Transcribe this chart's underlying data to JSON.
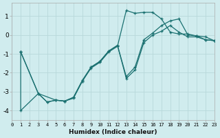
{
  "xlabel": "Humidex (Indice chaleur)",
  "ylabel": "",
  "bg_color": "#d0ecee",
  "grid_color": "#b8d8da",
  "line_color": "#1a7070",
  "xlim": [
    0,
    23
  ],
  "ylim": [
    -4.5,
    1.7
  ],
  "yticks": [
    -4,
    -3,
    -2,
    -1,
    0,
    1
  ],
  "xticks": [
    0,
    1,
    2,
    3,
    4,
    5,
    6,
    7,
    8,
    9,
    10,
    11,
    12,
    13,
    14,
    15,
    16,
    17,
    18,
    19,
    20,
    21,
    22,
    23
  ],
  "line1_x": [
    1,
    1,
    3,
    4,
    5,
    6,
    7,
    8,
    9,
    10,
    11,
    12,
    13,
    14,
    15,
    16,
    17,
    18,
    19,
    20,
    21,
    22,
    23
  ],
  "line1_y": [
    -0.9,
    -4.0,
    -3.1,
    -3.55,
    -3.45,
    -3.5,
    -3.35,
    -2.45,
    -1.75,
    -1.45,
    -0.9,
    -0.6,
    1.3,
    1.15,
    1.2,
    1.2,
    0.85,
    0.15,
    0.05,
    0.05,
    -0.05,
    -0.25,
    -0.3
  ],
  "line2_x": [
    1,
    3,
    4,
    5,
    6,
    7,
    8,
    9,
    10,
    11,
    12,
    13,
    14,
    15,
    16,
    17,
    18,
    19,
    20,
    21,
    22,
    23
  ],
  "line2_y": [
    -0.9,
    -3.1,
    -3.55,
    -3.45,
    -3.5,
    -3.3,
    -2.45,
    -1.7,
    -1.4,
    -0.85,
    -0.55,
    -2.2,
    -1.7,
    -0.25,
    0.1,
    0.5,
    0.75,
    0.85,
    0.0,
    -0.05,
    -0.1,
    -0.3
  ],
  "line3_x": [
    1,
    3,
    5,
    6,
    7,
    8,
    9,
    10,
    11,
    12,
    13,
    14,
    15,
    16,
    17,
    18,
    19,
    20,
    21,
    22,
    23
  ],
  "line3_y": [
    -0.9,
    -3.1,
    -3.45,
    -3.5,
    -3.3,
    -2.4,
    -1.7,
    -1.4,
    -0.85,
    -0.55,
    -2.3,
    -1.85,
    -0.4,
    0.0,
    0.2,
    0.5,
    0.15,
    -0.1,
    -0.1,
    -0.25,
    -0.3
  ]
}
